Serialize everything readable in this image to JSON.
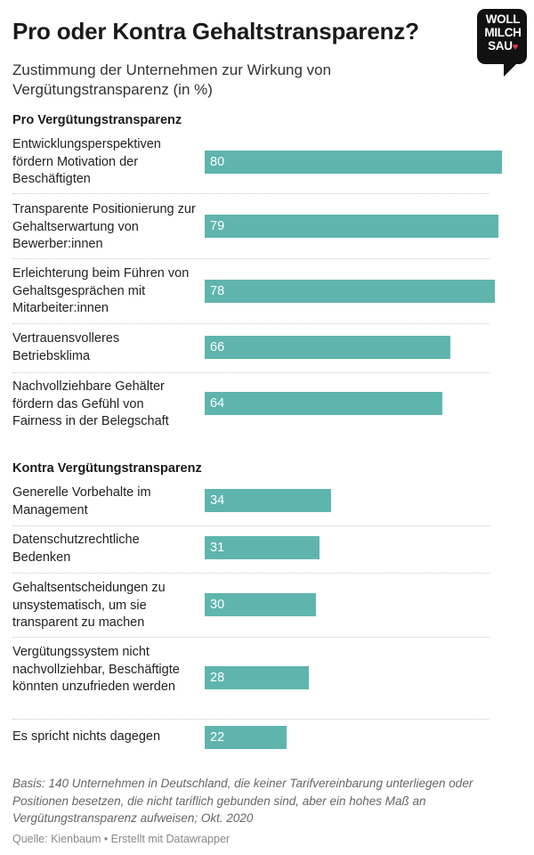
{
  "header": {
    "title": "Pro oder Kontra Gehaltstransparenz?",
    "subtitle": "Zustimmung der Unternehmen zur Wirkung von Vergütungstransparenz (in %)",
    "logo_text": [
      "WOLL",
      "MILCH",
      "SAU"
    ]
  },
  "colors": {
    "bar": "#5fb5ad",
    "logo_bg": "#111111",
    "logo_heart": "#e2414b"
  },
  "chart_data": {
    "type": "bar",
    "orientation": "horizontal",
    "xlim": [
      0,
      80
    ],
    "groups": [
      {
        "name": "Pro Vergütungstransparenz",
        "categories": [
          "Entwicklungsperspektiven fördern Motivation der Beschäftigten",
          "Transparente Positionierung zur Gehaltserwartung von Bewerber:innen",
          "Erleichterung beim Führen von Gehaltsgesprächen mit Mitarbeiter:innen",
          "Vertrauensvolleres Betriebsklima",
          "Nachvollziehbare Gehälter fördern das Gefühl von Fairness in der Belegschaft"
        ],
        "values": [
          80,
          79,
          78,
          66,
          64
        ]
      },
      {
        "name": "Kontra Vergütungstransparenz",
        "categories": [
          "Generelle Vorbehalte im Management",
          "Datenschutzrechtliche Bedenken",
          "Gehaltsentscheidungen zu unsystematisch, um sie transparent zu machen",
          "Vergütungssystem nicht nachvollziehbar, Beschäftigte könnten unzufrieden werden",
          "Es spricht nichts dagegen"
        ],
        "values": [
          34,
          31,
          30,
          28,
          22
        ]
      }
    ]
  },
  "footer": {
    "notes": "Basis: 140 Unternehmen in Deutschland, die keiner Tarifvereinbarung unterliegen oder Positionen besetzen, die nicht tariflich gebunden sind, aber ein hohes Maß an Vergütungstransparenz aufweisen; Okt. 2020",
    "source": "Quelle: Kienbaum • Erstellt mit Datawrapper"
  }
}
